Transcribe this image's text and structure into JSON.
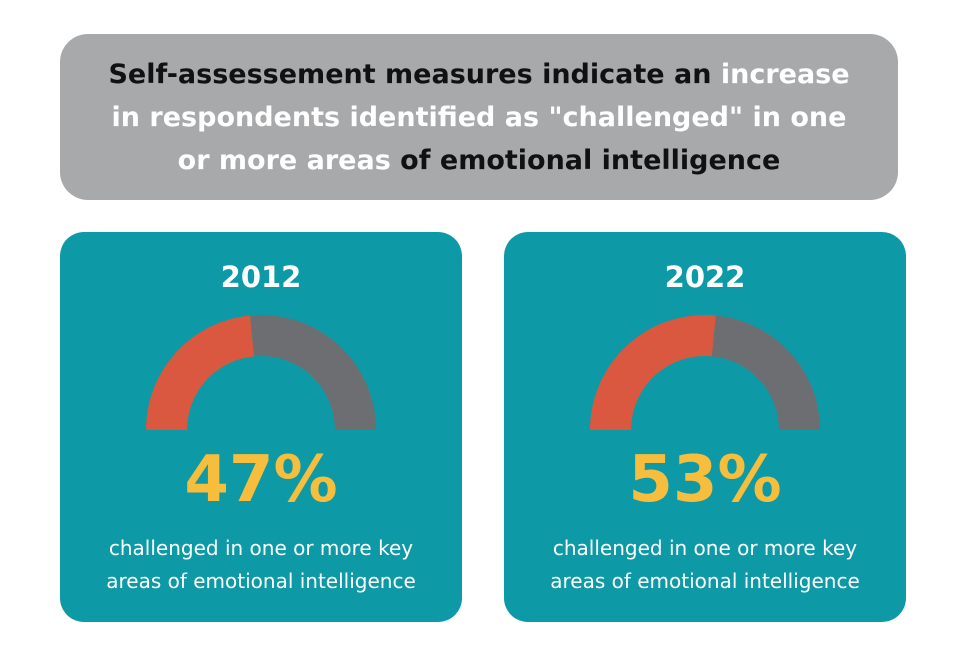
{
  "header": {
    "parts": [
      {
        "text": "Self-assessement measures indicate an ",
        "highlight": false
      },
      {
        "text": "increase in respondents identified as \"challenged\" in one or more areas",
        "highlight": true
      },
      {
        "text": " of emotional intelligence",
        "highlight": false
      }
    ]
  },
  "colors": {
    "challenged": "#d9583f",
    "remainder": "#6d6e71",
    "card": "#0d9aa6",
    "header_bg": "#a8a9ab",
    "percent_text": "#f6be3c"
  },
  "chart_data": [
    {
      "type": "pie",
      "style": "semicircle-gauge",
      "title": "2012",
      "value_label": "47%",
      "values": [
        47,
        53
      ],
      "caption_lines": [
        "challenged in one or more key",
        "areas of emotional intelligence"
      ]
    },
    {
      "type": "pie",
      "style": "semicircle-gauge",
      "title": "2022",
      "value_label": "53%",
      "values": [
        53,
        47
      ],
      "caption_lines": [
        "challenged in one or more key",
        "areas of emotional intelligence"
      ]
    }
  ]
}
